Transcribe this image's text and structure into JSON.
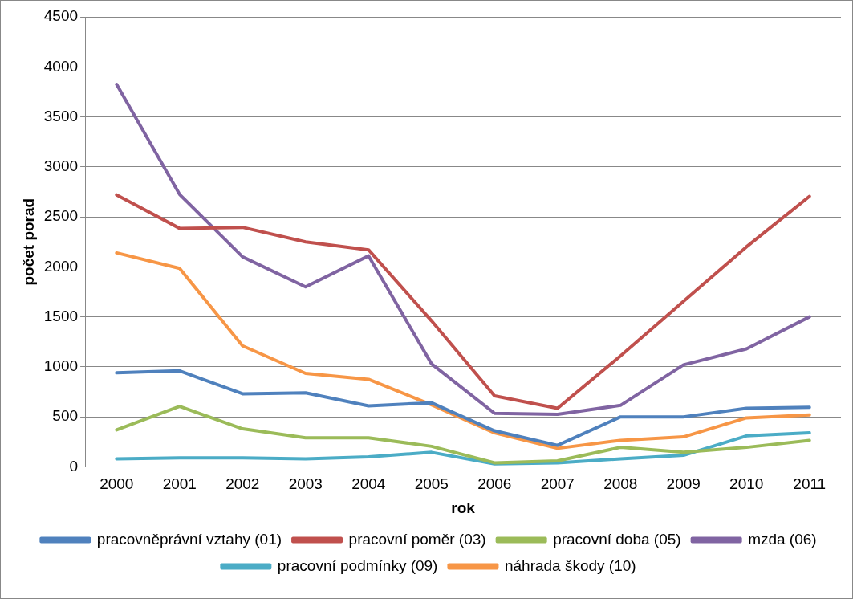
{
  "chart_data": {
    "type": "line",
    "xlabel": "rok",
    "ylabel": "počet porad",
    "categories": [
      "2000",
      "2001",
      "2002",
      "2003",
      "2004",
      "2005",
      "2006",
      "2007",
      "2008",
      "2009",
      "2010",
      "2011"
    ],
    "ylim": [
      0,
      4500
    ],
    "yticks": [
      0,
      500,
      1000,
      1500,
      2000,
      2500,
      3000,
      3500,
      4000,
      4500
    ],
    "grid": "y",
    "legend": "bottom",
    "marker": "none",
    "line_style": "solid",
    "series": [
      {
        "name": "pracovněprávní vztahy (01)",
        "color": "#4f81bd",
        "values": [
          940,
          960,
          730,
          740,
          610,
          640,
          360,
          215,
          500,
          500,
          585,
          595
        ]
      },
      {
        "name": "pracovní poměr (03)",
        "color": "#c0504d",
        "values": [
          2720,
          2385,
          2395,
          2250,
          2170,
          1460,
          710,
          585,
          1110,
          1655,
          2200,
          2705
        ]
      },
      {
        "name": "pracovní doba (05)",
        "color": "#9bbb59",
        "values": [
          370,
          605,
          380,
          290,
          290,
          205,
          40,
          60,
          195,
          145,
          195,
          265
        ]
      },
      {
        "name": "mzda (06)",
        "color": "#8064a2",
        "values": [
          3825,
          2725,
          2100,
          1800,
          2110,
          1030,
          535,
          525,
          615,
          1020,
          1180,
          1500
        ]
      },
      {
        "name": "pracovní podmínky (09)",
        "color": "#4bacc6",
        "values": [
          80,
          90,
          90,
          80,
          100,
          145,
          30,
          40,
          80,
          115,
          310,
          340
        ]
      },
      {
        "name": "náhrada škody (10)",
        "color": "#f79646",
        "values": [
          2140,
          1985,
          1210,
          935,
          875,
          620,
          340,
          185,
          265,
          300,
          490,
          520
        ]
      }
    ]
  }
}
